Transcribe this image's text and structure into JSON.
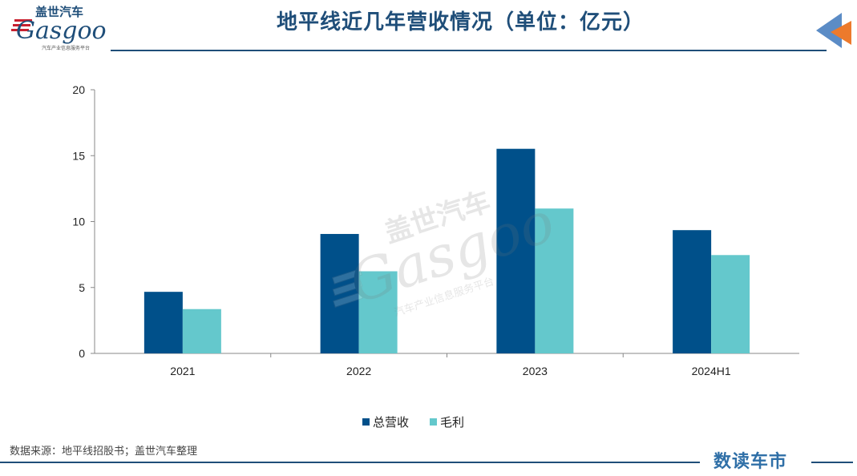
{
  "header": {
    "logo_brand_cn": "盖世汽车",
    "logo_brand_en": "Gasgoo",
    "logo_tagline": "汽车产业信息服务平台",
    "title": "地平线近几年营收情况（单位：亿元）"
  },
  "colors": {
    "primary": "#1f4e79",
    "series_revenue": "#00508a",
    "series_gross_profit": "#64c8cc",
    "arrow_blue": "#5b8cc6",
    "arrow_orange": "#ec7a2c"
  },
  "chart_data": {
    "type": "bar",
    "title": "地平线近几年营收情况（单位：亿元）",
    "categories": [
      "2021",
      "2022",
      "2023",
      "2024H1"
    ],
    "series": [
      {
        "name": "总营收",
        "values": [
          4.67,
          9.06,
          15.52,
          9.35
        ]
      },
      {
        "name": "毛利",
        "values": [
          3.36,
          6.23,
          10.99,
          7.46
        ]
      }
    ],
    "yticks": [
      0,
      5,
      10,
      15,
      20
    ],
    "ylim": [
      0,
      20
    ],
    "grid": false,
    "legend": "bottom",
    "xlabel": "",
    "ylabel": ""
  },
  "footer": {
    "source": "数据来源：地平线招股书；盖世汽车整理",
    "brand": "数读车市"
  },
  "icons": {
    "corner": "arrow-left-icon",
    "logo": "gasgoo-logo"
  }
}
